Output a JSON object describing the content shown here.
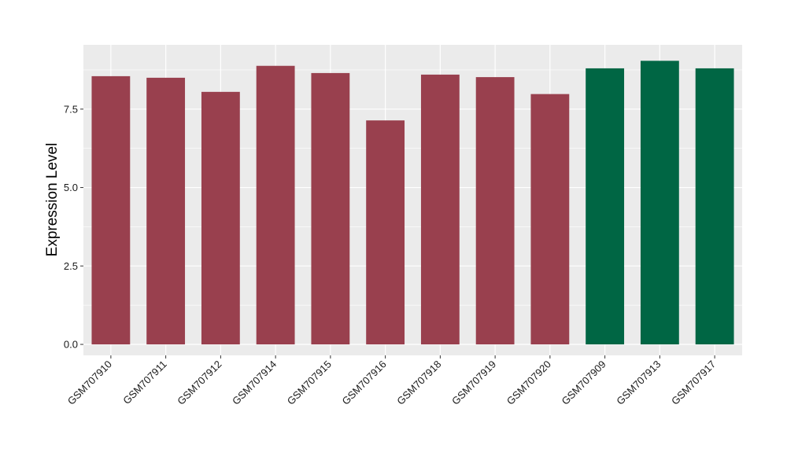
{
  "chart_data": {
    "type": "bar",
    "title": "",
    "xlabel": "",
    "ylabel": "Expression Level",
    "ylim": [
      -0.35,
      9.55
    ],
    "yticks": [
      0.0,
      2.5,
      5.0,
      7.5
    ],
    "ytick_labels": [
      "0.0",
      "2.5",
      "5.0",
      "7.5"
    ],
    "grid": true,
    "legend": "none",
    "panel_background": "#ebebeb",
    "grid_color": "#ffffff",
    "categories": [
      "GSM707910",
      "GSM707911",
      "GSM707912",
      "GSM707914",
      "GSM707915",
      "GSM707916",
      "GSM707918",
      "GSM707919",
      "GSM707920",
      "GSM707909",
      "GSM707913",
      "GSM707917"
    ],
    "values": [
      8.55,
      8.5,
      8.05,
      8.88,
      8.65,
      7.14,
      8.6,
      8.52,
      7.98,
      8.8,
      9.04,
      8.8
    ],
    "bar_colors": [
      "#99404e",
      "#99404e",
      "#99404e",
      "#99404e",
      "#99404e",
      "#99404e",
      "#99404e",
      "#99404e",
      "#99404e",
      "#006644",
      "#006644",
      "#006644"
    ]
  }
}
